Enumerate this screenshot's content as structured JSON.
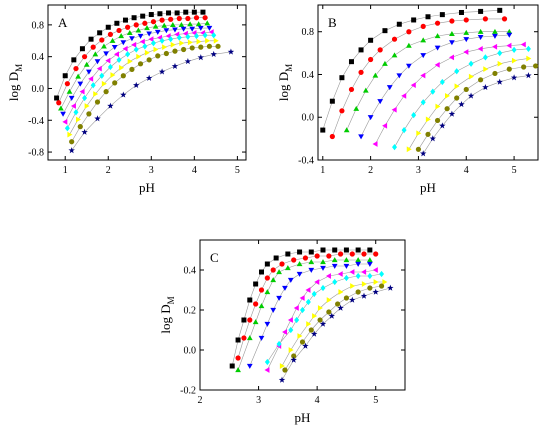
{
  "chart_data": [
    {
      "type": "scatter",
      "panel_label": "A",
      "xlabel": "pH",
      "ylabel_main": "log D",
      "ylabel_sub": "M",
      "xlim": [
        0.6,
        5.2
      ],
      "ylim": [
        -0.9,
        1.05
      ],
      "xticks": [
        1,
        2,
        3,
        4,
        5
      ],
      "yticks": [
        -0.8,
        -0.4,
        0.0,
        0.4,
        0.8
      ],
      "ytick_labels": [
        "-0.8",
        "-0.4",
        "0.0",
        "0.4",
        "0.8"
      ],
      "grid": false,
      "legend": false,
      "series": [
        {
          "marker": "square",
          "color": "#000000",
          "x": [
            0.8,
            1.0,
            1.2,
            1.4,
            1.6,
            1.8,
            2.0,
            2.2,
            2.4,
            2.6,
            2.8,
            3.0,
            3.2,
            3.4,
            3.6,
            3.8,
            4.0,
            4.2
          ],
          "y": [
            -0.12,
            0.16,
            0.36,
            0.5,
            0.62,
            0.7,
            0.77,
            0.82,
            0.86,
            0.89,
            0.91,
            0.93,
            0.94,
            0.95,
            0.95,
            0.96,
            0.96,
            0.96
          ]
        },
        {
          "marker": "circle",
          "color": "#ff0000",
          "x": [
            0.85,
            1.05,
            1.25,
            1.45,
            1.65,
            1.85,
            2.05,
            2.25,
            2.45,
            2.65,
            2.85,
            3.05,
            3.25,
            3.45,
            3.65,
            3.85,
            4.05,
            4.25
          ],
          "y": [
            -0.18,
            0.06,
            0.25,
            0.4,
            0.52,
            0.61,
            0.68,
            0.73,
            0.77,
            0.8,
            0.82,
            0.84,
            0.86,
            0.87,
            0.88,
            0.88,
            0.89,
            0.89
          ]
        },
        {
          "marker": "triangle-up",
          "color": "#00cc00",
          "x": [
            0.9,
            1.1,
            1.3,
            1.5,
            1.7,
            1.9,
            2.1,
            2.3,
            2.5,
            2.7,
            2.9,
            3.1,
            3.3,
            3.5,
            3.7,
            3.9,
            4.1,
            4.3
          ],
          "y": [
            -0.25,
            -0.04,
            0.15,
            0.3,
            0.43,
            0.53,
            0.6,
            0.66,
            0.7,
            0.73,
            0.76,
            0.78,
            0.79,
            0.8,
            0.8,
            0.81,
            0.81,
            0.82
          ]
        },
        {
          "marker": "triangle-down",
          "color": "#0000ff",
          "x": [
            0.95,
            1.15,
            1.35,
            1.55,
            1.75,
            1.95,
            2.15,
            2.35,
            2.55,
            2.75,
            2.95,
            3.15,
            3.35,
            3.55,
            3.75,
            3.95,
            4.15,
            4.35
          ],
          "y": [
            -0.32,
            -0.12,
            0.06,
            0.21,
            0.34,
            0.44,
            0.52,
            0.58,
            0.63,
            0.66,
            0.69,
            0.71,
            0.73,
            0.74,
            0.75,
            0.75,
            0.76,
            0.76
          ]
        },
        {
          "marker": "triangle-left",
          "color": "#ff00ff",
          "x": [
            1.0,
            1.2,
            1.4,
            1.6,
            1.8,
            2.0,
            2.2,
            2.4,
            2.6,
            2.8,
            3.0,
            3.2,
            3.4,
            3.6,
            3.8,
            4.0,
            4.2,
            4.4
          ],
          "y": [
            -0.42,
            -0.22,
            -0.04,
            0.12,
            0.25,
            0.35,
            0.43,
            0.5,
            0.55,
            0.59,
            0.62,
            0.64,
            0.66,
            0.68,
            0.69,
            0.7,
            0.7,
            0.71
          ]
        },
        {
          "marker": "diamond",
          "color": "#00ffff",
          "x": [
            1.05,
            1.25,
            1.45,
            1.65,
            1.85,
            2.05,
            2.25,
            2.45,
            2.65,
            2.85,
            3.05,
            3.25,
            3.45,
            3.65,
            3.85,
            4.05,
            4.25,
            4.45
          ],
          "y": [
            -0.5,
            -0.3,
            -0.12,
            0.04,
            0.16,
            0.27,
            0.36,
            0.43,
            0.49,
            0.53,
            0.57,
            0.6,
            0.62,
            0.64,
            0.65,
            0.66,
            0.67,
            0.67
          ]
        },
        {
          "marker": "triangle-right",
          "color": "#ffff00",
          "x": [
            1.1,
            1.3,
            1.5,
            1.7,
            1.9,
            2.1,
            2.3,
            2.5,
            2.7,
            2.9,
            3.1,
            3.3,
            3.5,
            3.7,
            3.9,
            4.1,
            4.3,
            4.5
          ],
          "y": [
            -0.58,
            -0.39,
            -0.22,
            -0.07,
            0.06,
            0.17,
            0.26,
            0.34,
            0.4,
            0.45,
            0.49,
            0.52,
            0.55,
            0.57,
            0.58,
            0.59,
            0.6,
            0.6
          ]
        },
        {
          "marker": "circle",
          "color": "#808000",
          "x": [
            1.15,
            1.35,
            1.55,
            1.75,
            1.95,
            2.15,
            2.35,
            2.55,
            2.75,
            2.95,
            3.15,
            3.35,
            3.55,
            3.75,
            3.95,
            4.15,
            4.35,
            4.55
          ],
          "y": [
            -0.67,
            -0.48,
            -0.32,
            -0.17,
            -0.04,
            0.07,
            0.16,
            0.24,
            0.31,
            0.36,
            0.41,
            0.44,
            0.47,
            0.49,
            0.51,
            0.52,
            0.53,
            0.53
          ]
        },
        {
          "marker": "star",
          "color": "#000080",
          "x": [
            1.15,
            1.45,
            1.75,
            2.05,
            2.35,
            2.65,
            2.95,
            3.25,
            3.55,
            3.85,
            4.15,
            4.45,
            4.85
          ],
          "y": [
            -0.78,
            -0.55,
            -0.38,
            -0.22,
            -0.08,
            0.04,
            0.13,
            0.21,
            0.28,
            0.34,
            0.39,
            0.43,
            0.46
          ]
        }
      ]
    },
    {
      "type": "scatter",
      "panel_label": "B",
      "xlabel": "pH",
      "ylabel_main": "log D",
      "ylabel_sub": "M",
      "xlim": [
        0.9,
        5.5
      ],
      "ylim": [
        -0.4,
        1.05
      ],
      "xticks": [
        1,
        2,
        3,
        4,
        5
      ],
      "yticks": [
        -0.4,
        0.0,
        0.4,
        0.8
      ],
      "ytick_labels": [
        "-0.4",
        "0.0",
        "0.4",
        "0.8"
      ],
      "grid": false,
      "legend": false,
      "series": [
        {
          "marker": "square",
          "color": "#000000",
          "x": [
            1.0,
            1.2,
            1.4,
            1.6,
            1.8,
            2.0,
            2.3,
            2.6,
            2.9,
            3.2,
            3.5,
            3.9,
            4.3,
            4.7
          ],
          "y": [
            -0.12,
            0.15,
            0.37,
            0.52,
            0.63,
            0.72,
            0.81,
            0.87,
            0.91,
            0.94,
            0.96,
            0.98,
            0.99,
            1.0
          ]
        },
        {
          "marker": "circle",
          "color": "#ff0000",
          "x": [
            1.2,
            1.4,
            1.6,
            1.8,
            2.0,
            2.2,
            2.5,
            2.8,
            3.1,
            3.4,
            3.7,
            4.0,
            4.4,
            4.8
          ],
          "y": [
            -0.18,
            0.06,
            0.26,
            0.42,
            0.54,
            0.63,
            0.73,
            0.8,
            0.85,
            0.88,
            0.9,
            0.91,
            0.92,
            0.92
          ]
        },
        {
          "marker": "triangle-up",
          "color": "#00cc00",
          "x": [
            1.5,
            1.7,
            1.9,
            2.1,
            2.3,
            2.5,
            2.8,
            3.1,
            3.4,
            3.7,
            4.0,
            4.3,
            4.6,
            4.9
          ],
          "y": [
            -0.12,
            0.08,
            0.25,
            0.39,
            0.5,
            0.58,
            0.67,
            0.72,
            0.76,
            0.78,
            0.79,
            0.8,
            0.8,
            0.8
          ]
        },
        {
          "marker": "triangle-down",
          "color": "#0000ff",
          "x": [
            1.8,
            2.0,
            2.2,
            2.4,
            2.6,
            2.8,
            3.1,
            3.4,
            3.7,
            4.0,
            4.3,
            4.6,
            4.9
          ],
          "y": [
            -0.18,
            0.0,
            0.15,
            0.28,
            0.39,
            0.48,
            0.58,
            0.65,
            0.7,
            0.73,
            0.75,
            0.76,
            0.77
          ]
        },
        {
          "marker": "triangle-left",
          "color": "#ff00ff",
          "x": [
            2.1,
            2.3,
            2.5,
            2.7,
            2.9,
            3.1,
            3.4,
            3.7,
            4.0,
            4.3,
            4.6,
            4.9,
            5.2
          ],
          "y": [
            -0.25,
            -0.08,
            0.07,
            0.2,
            0.3,
            0.39,
            0.49,
            0.56,
            0.61,
            0.64,
            0.66,
            0.67,
            0.68
          ]
        },
        {
          "marker": "diamond",
          "color": "#00ffff",
          "x": [
            2.5,
            2.7,
            2.9,
            3.1,
            3.3,
            3.5,
            3.8,
            4.1,
            4.4,
            4.7,
            5.0,
            5.3
          ],
          "y": [
            -0.28,
            -0.12,
            0.02,
            0.14,
            0.24,
            0.33,
            0.43,
            0.5,
            0.56,
            0.6,
            0.63,
            0.64
          ]
        },
        {
          "marker": "triangle-right",
          "color": "#ffff00",
          "x": [
            2.8,
            3.0,
            3.2,
            3.4,
            3.6,
            3.8,
            4.1,
            4.4,
            4.7,
            5.0,
            5.3
          ],
          "y": [
            -0.3,
            -0.15,
            -0.02,
            0.1,
            0.2,
            0.29,
            0.38,
            0.45,
            0.5,
            0.53,
            0.55
          ]
        },
        {
          "marker": "circle",
          "color": "#808000",
          "x": [
            3.0,
            3.2,
            3.4,
            3.6,
            3.8,
            4.0,
            4.3,
            4.6,
            4.9,
            5.2,
            5.45
          ],
          "y": [
            -0.3,
            -0.16,
            -0.03,
            0.08,
            0.18,
            0.26,
            0.35,
            0.41,
            0.45,
            0.47,
            0.48
          ]
        },
        {
          "marker": "star",
          "color": "#000080",
          "x": [
            3.1,
            3.3,
            3.5,
            3.7,
            3.9,
            4.1,
            4.4,
            4.7,
            5.0,
            5.3
          ],
          "y": [
            -0.34,
            -0.2,
            -0.08,
            0.03,
            0.12,
            0.2,
            0.28,
            0.33,
            0.37,
            0.39
          ]
        }
      ]
    },
    {
      "type": "scatter",
      "panel_label": "C",
      "xlabel": "pH",
      "ylabel_main": "log D",
      "ylabel_sub": "M",
      "xlim": [
        2.0,
        5.5
      ],
      "ylim": [
        -0.2,
        0.55
      ],
      "xticks": [
        2,
        3,
        4,
        5
      ],
      "yticks": [
        -0.2,
        0.0,
        0.2,
        0.4
      ],
      "ytick_labels": [
        "-0.2",
        "0.0",
        "0.2",
        "0.4"
      ],
      "grid": false,
      "legend": false,
      "series": [
        {
          "marker": "square",
          "color": "#000000",
          "x": [
            2.55,
            2.65,
            2.75,
            2.85,
            2.95,
            3.05,
            3.15,
            3.3,
            3.5,
            3.7,
            3.9,
            4.1,
            4.3,
            4.5,
            4.7,
            4.9
          ],
          "y": [
            -0.08,
            0.05,
            0.15,
            0.25,
            0.33,
            0.39,
            0.43,
            0.46,
            0.48,
            0.49,
            0.49,
            0.5,
            0.5,
            0.5,
            0.5,
            0.5
          ]
        },
        {
          "marker": "circle",
          "color": "#ff0000",
          "x": [
            2.65,
            2.75,
            2.85,
            2.95,
            3.05,
            3.15,
            3.25,
            3.4,
            3.6,
            3.8,
            4.0,
            4.2,
            4.4,
            4.6,
            4.8,
            5.0
          ],
          "y": [
            -0.04,
            0.06,
            0.15,
            0.23,
            0.3,
            0.36,
            0.4,
            0.43,
            0.45,
            0.46,
            0.47,
            0.47,
            0.48,
            0.48,
            0.48,
            0.48
          ]
        },
        {
          "marker": "triangle-up",
          "color": "#00cc00",
          "x": [
            2.65,
            2.85,
            2.95,
            3.05,
            3.15,
            3.25,
            3.35,
            3.5,
            3.7,
            3.9,
            4.1,
            4.3,
            4.5,
            4.7,
            4.9
          ],
          "y": [
            -0.1,
            0.06,
            0.14,
            0.22,
            0.29,
            0.35,
            0.39,
            0.41,
            0.43,
            0.44,
            0.44,
            0.45,
            0.45,
            0.45,
            0.45
          ]
        },
        {
          "marker": "triangle-down",
          "color": "#0000ff",
          "x": [
            2.85,
            3.05,
            3.15,
            3.25,
            3.35,
            3.45,
            3.55,
            3.7,
            3.9,
            4.1,
            4.3,
            4.5,
            4.7,
            4.9
          ],
          "y": [
            -0.08,
            0.06,
            0.13,
            0.2,
            0.26,
            0.31,
            0.35,
            0.38,
            0.4,
            0.41,
            0.42,
            0.42,
            0.43,
            0.43
          ]
        },
        {
          "marker": "triangle-left",
          "color": "#ff00ff",
          "x": [
            3.15,
            3.35,
            3.45,
            3.55,
            3.65,
            3.75,
            3.85,
            4.0,
            4.2,
            4.4,
            4.6,
            4.8,
            5.0
          ],
          "y": [
            -0.1,
            0.02,
            0.09,
            0.15,
            0.21,
            0.26,
            0.3,
            0.34,
            0.37,
            0.38,
            0.39,
            0.39,
            0.4
          ]
        },
        {
          "marker": "diamond",
          "color": "#00ffff",
          "x": [
            3.15,
            3.35,
            3.55,
            3.65,
            3.75,
            3.85,
            3.95,
            4.1,
            4.3,
            4.5,
            4.7,
            4.9,
            5.1
          ],
          "y": [
            -0.06,
            0.03,
            0.1,
            0.15,
            0.2,
            0.24,
            0.28,
            0.31,
            0.34,
            0.36,
            0.37,
            0.37,
            0.38
          ]
        },
        {
          "marker": "triangle-right",
          "color": "#ffff00",
          "x": [
            3.4,
            3.55,
            3.7,
            3.85,
            3.95,
            4.05,
            4.2,
            4.4,
            4.6,
            4.8,
            5.0,
            5.15
          ],
          "y": [
            -0.08,
            0.0,
            0.07,
            0.13,
            0.17,
            0.21,
            0.25,
            0.29,
            0.32,
            0.33,
            0.34,
            0.34
          ]
        },
        {
          "marker": "circle",
          "color": "#808000",
          "x": [
            3.45,
            3.6,
            3.75,
            3.9,
            4.05,
            4.2,
            4.35,
            4.5,
            4.7,
            4.9,
            5.1
          ],
          "y": [
            -0.1,
            -0.03,
            0.04,
            0.1,
            0.15,
            0.19,
            0.23,
            0.26,
            0.29,
            0.31,
            0.32
          ]
        },
        {
          "marker": "star",
          "color": "#000080",
          "x": [
            3.4,
            3.6,
            3.8,
            3.95,
            4.1,
            4.25,
            4.4,
            4.6,
            4.8,
            5.0,
            5.25
          ],
          "y": [
            -0.15,
            -0.05,
            0.02,
            0.08,
            0.13,
            0.17,
            0.21,
            0.25,
            0.27,
            0.29,
            0.31
          ]
        }
      ]
    }
  ]
}
